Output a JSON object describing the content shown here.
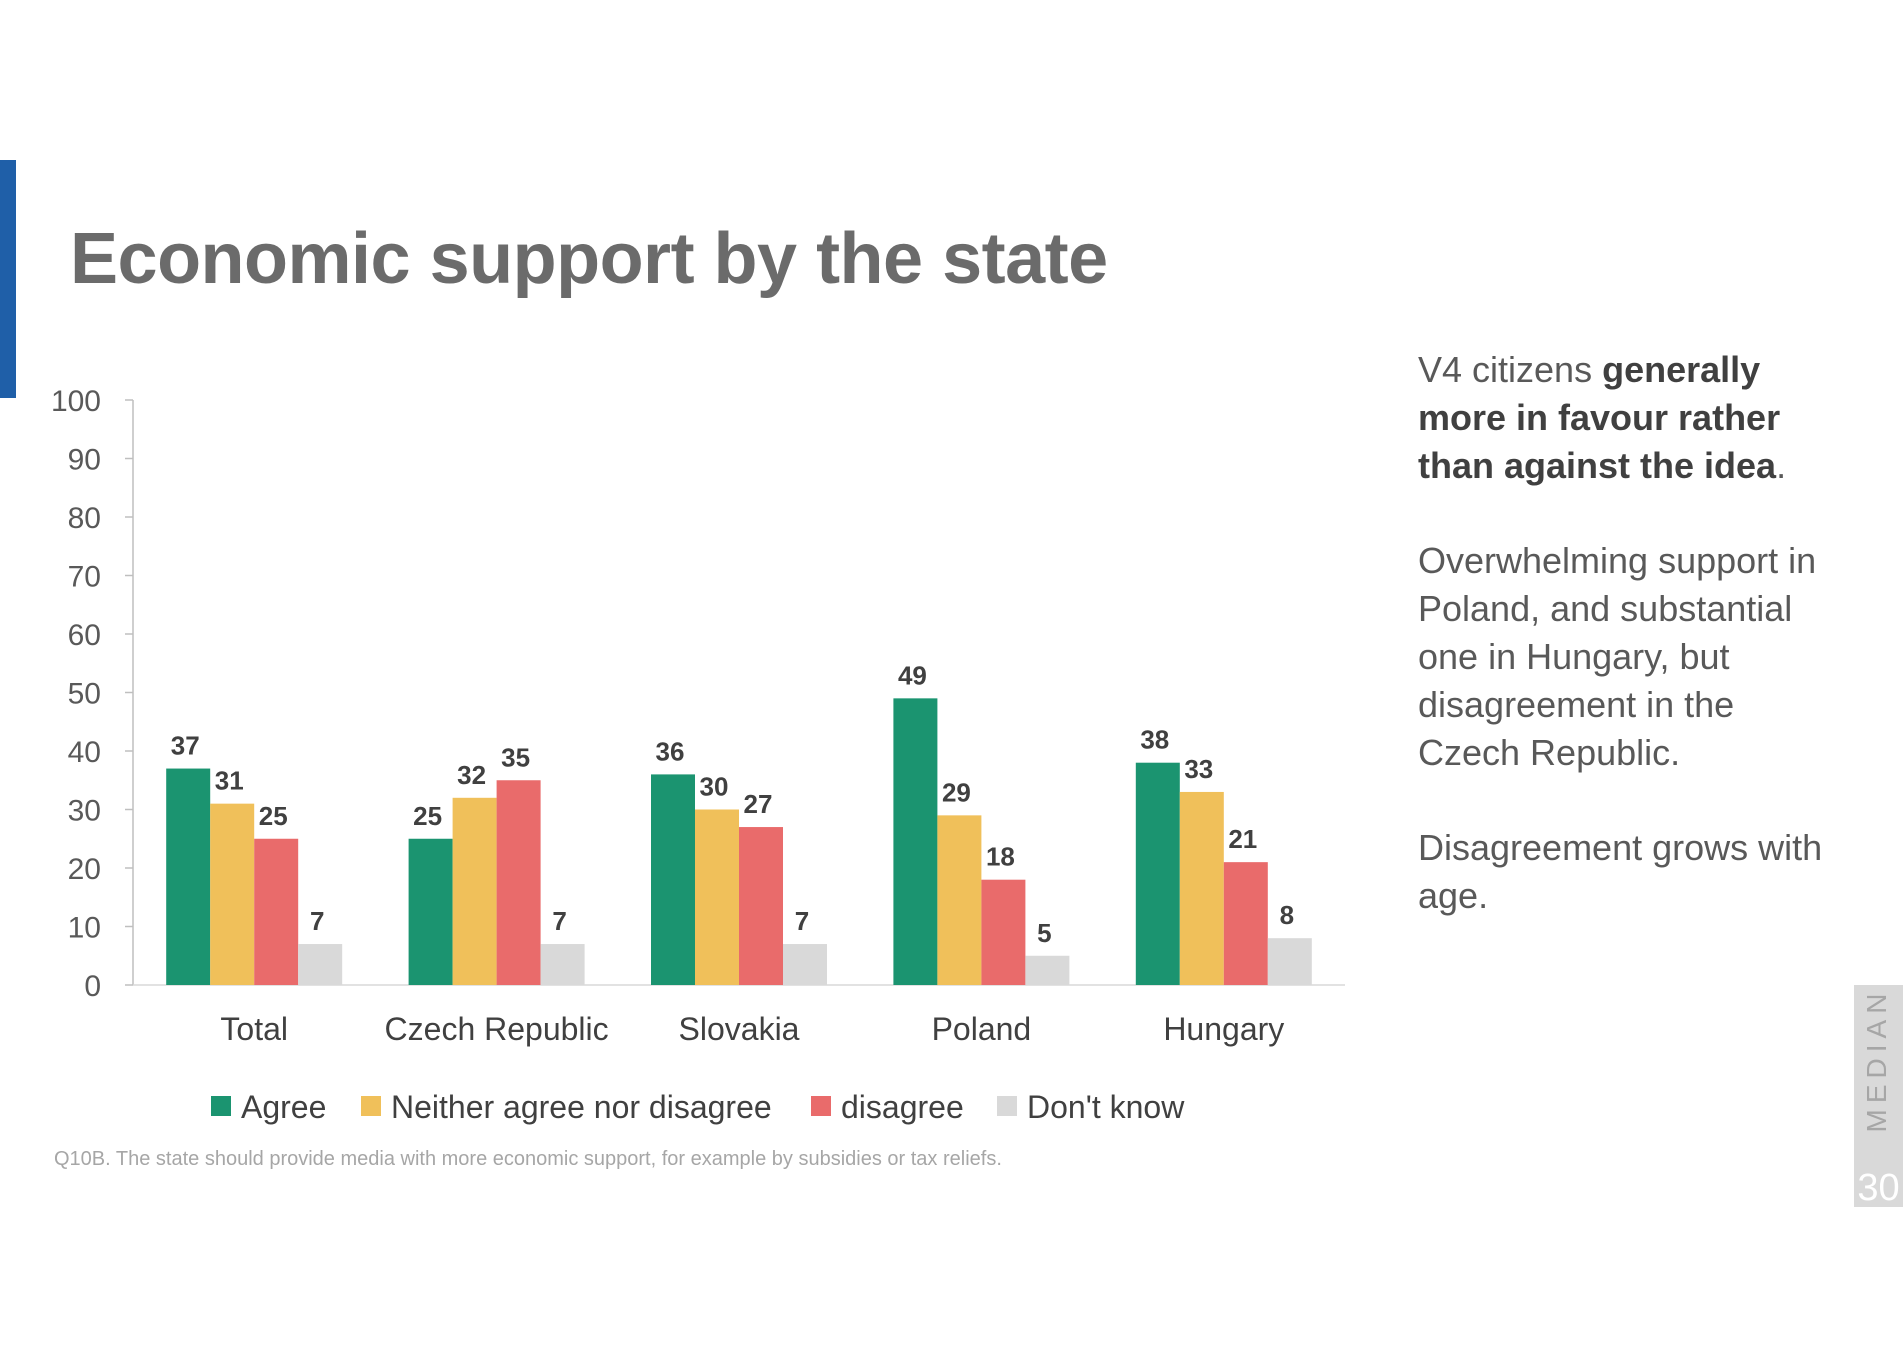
{
  "title": "Economic support by the state",
  "side_text": {
    "p1_pre": "V4 citizens ",
    "p1_bold": "generally more in favour rather than against the idea",
    "p1_post": ".",
    "p2": "Overwhelming support in Poland, and substantial one in Hungary, but disagreement in the Czech Republic.",
    "p3": "Disagreement grows with age."
  },
  "footnote": "Q10B. The state should provide media with more economic support, for example by subsidies or tax reliefs.",
  "brand": "MEDIAN",
  "page_number": "30",
  "colors": {
    "accent": "#1f5fa8"
  },
  "chart_data": {
    "type": "bar",
    "categories": [
      "Total",
      "Czech Republic",
      "Slovakia",
      "Poland",
      "Hungary"
    ],
    "series": [
      {
        "name": "Agree",
        "color": "#1b9470",
        "values": [
          37,
          25,
          36,
          49,
          38
        ]
      },
      {
        "name": "Neither agree nor disagree",
        "color": "#f0c05a",
        "values": [
          31,
          32,
          30,
          29,
          33
        ]
      },
      {
        "name": "disagree",
        "color": "#e96b6b",
        "values": [
          25,
          35,
          27,
          18,
          21
        ]
      },
      {
        "name": "Don't know",
        "color": "#d9d9d9",
        "values": [
          7,
          7,
          7,
          5,
          8
        ]
      }
    ],
    "ylim": [
      0,
      100
    ],
    "yticks": [
      0,
      10,
      20,
      30,
      40,
      50,
      60,
      70,
      80,
      90,
      100
    ],
    "data_labels": true,
    "legend_position": "bottom",
    "grid": false
  }
}
